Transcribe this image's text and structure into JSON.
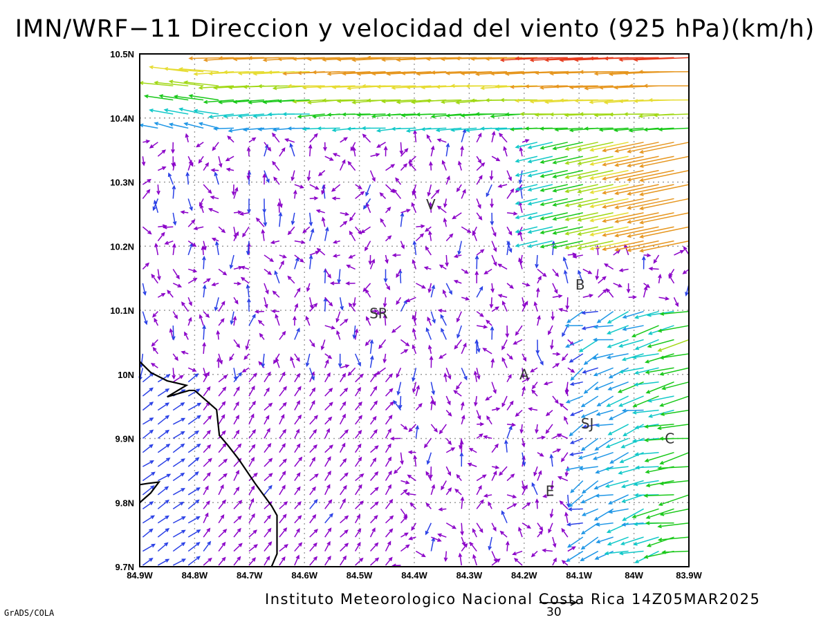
{
  "title": "IMN/WRF−11 Direccion y velocidad del viento (925 hPa)(km/h)",
  "credits": "Instituto Meteorologico Nacional Costa Rica 14Z05MAR2025",
  "software": "GrADS/COLA",
  "reference_vector": {
    "value": "30"
  },
  "map": {
    "lat_range": [
      9.7,
      10.5
    ],
    "lon_range": [
      -84.9,
      -83.9
    ],
    "lat_ticks": [
      "9.7N",
      "9.8N",
      "9.9N",
      "10N",
      "10.1N",
      "10.2N",
      "10.3N",
      "10.4N",
      "10.5N"
    ],
    "lon_ticks": [
      "84.9W",
      "84.8W",
      "84.7W",
      "84.6W",
      "84.5W",
      "84.4W",
      "84.3W",
      "84.2W",
      "84.1W",
      "84W",
      "83.9W"
    ],
    "grid": "dotted",
    "places": [
      {
        "label": "V",
        "lon": -84.37,
        "lat": 10.265
      },
      {
        "label": "B",
        "lon": -84.098,
        "lat": 10.14
      },
      {
        "label": "SR",
        "lon": -84.465,
        "lat": 10.095
      },
      {
        "label": "A",
        "lon": -84.2,
        "lat": 10.0
      },
      {
        "label": "SJ",
        "lon": -84.085,
        "lat": 9.923
      },
      {
        "label": "C",
        "lon": -83.935,
        "lat": 9.9
      },
      {
        "label": "E",
        "lon": -84.153,
        "lat": 9.818
      }
    ],
    "coastline": [
      [
        -84.9,
        10.02
      ],
      [
        -84.88,
        10.003
      ],
      [
        -84.85,
        9.99
      ],
      [
        -84.825,
        9.985
      ],
      [
        -84.815,
        9.983
      ],
      [
        -84.85,
        9.965
      ],
      [
        -84.81,
        9.975
      ],
      [
        -84.8,
        9.975
      ],
      [
        -84.78,
        9.96
      ],
      [
        -84.76,
        9.945
      ],
      [
        -84.755,
        9.905
      ],
      [
        -84.74,
        9.89
      ],
      [
        -84.72,
        9.868
      ],
      [
        -84.69,
        9.83
      ],
      [
        -84.66,
        9.795
      ],
      [
        -84.65,
        9.78
      ],
      [
        -84.65,
        9.72
      ],
      [
        -84.66,
        9.7
      ]
    ],
    "coastline_west": [
      [
        -84.9,
        9.8
      ],
      [
        -84.88,
        9.815
      ],
      [
        -84.865,
        9.832
      ],
      [
        -84.885,
        9.83
      ],
      [
        -84.9,
        9.828
      ]
    ],
    "colors": {
      "violet": "#8a00c8",
      "blue": "#2a40e6",
      "lightblue": "#1e96e6",
      "cyan": "#10c8c8",
      "green": "#18c818",
      "yellowgreen": "#a0d814",
      "yellow": "#e6dc32",
      "orange": "#e6961e",
      "red": "#e63c1e"
    }
  },
  "wind_legend_speeds_kmh": [
    5,
    10,
    15,
    20,
    25,
    30,
    35,
    40,
    45
  ]
}
